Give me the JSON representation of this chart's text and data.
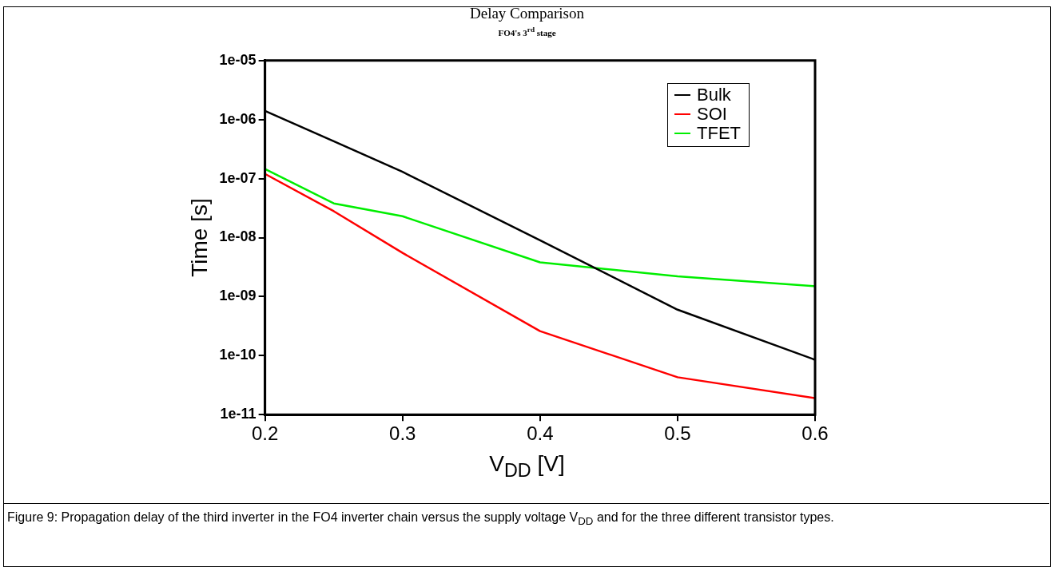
{
  "chart_data": {
    "type": "line",
    "title": "Delay Comparison",
    "subtitle": "FO4's 3$^{rd}$ stage",
    "xlabel": "V$_{DD}$ [V]",
    "ylabel": "Time [s]",
    "x": [
      0.2,
      0.25,
      0.3,
      0.4,
      0.5,
      0.6
    ],
    "series": [
      {
        "name": "Bulk",
        "color": "#000000",
        "values": [
          1.4e-06,
          4.3e-07,
          1.3e-07,
          9e-09,
          6e-10,
          8.5e-11
        ]
      },
      {
        "name": "SOI",
        "color": "#ff0000",
        "values": [
          1.2e-07,
          2.8e-08,
          5.5e-09,
          2.6e-10,
          4.3e-11,
          1.9e-11
        ]
      },
      {
        "name": "TFET",
        "color": "#00ee00",
        "values": [
          1.45e-07,
          3.8e-08,
          2.3e-08,
          3.8e-09,
          2.2e-09,
          1.5e-09
        ]
      }
    ],
    "log": "y",
    "xlim": [
      0.2,
      0.6
    ],
    "xticks": [
      0.2,
      0.3,
      0.4,
      0.5,
      0.6
    ],
    "ylim": [
      1e-11,
      1e-05
    ],
    "yticks": [
      {
        "value": 1e-11,
        "label": "1e-11"
      },
      {
        "value": 1e-10,
        "label": "1e-10"
      },
      {
        "value": 1e-09,
        "label": "1e-09"
      },
      {
        "value": 1e-08,
        "label": "1e-08"
      },
      {
        "value": 1e-07,
        "label": "1e-07"
      },
      {
        "value": 1e-06,
        "label": "1e-06"
      },
      {
        "value": 1e-05,
        "label": "1e-05"
      }
    ],
    "grid": false,
    "legend": "top right",
    "marker": "none",
    "line_style": "solid",
    "annotations": [
      "Figure 9: Propagation delay of the third inverter in the FO4 inverter chain versus the supply voltage V$_{DD}$ and for the three different transistor types."
    ]
  }
}
